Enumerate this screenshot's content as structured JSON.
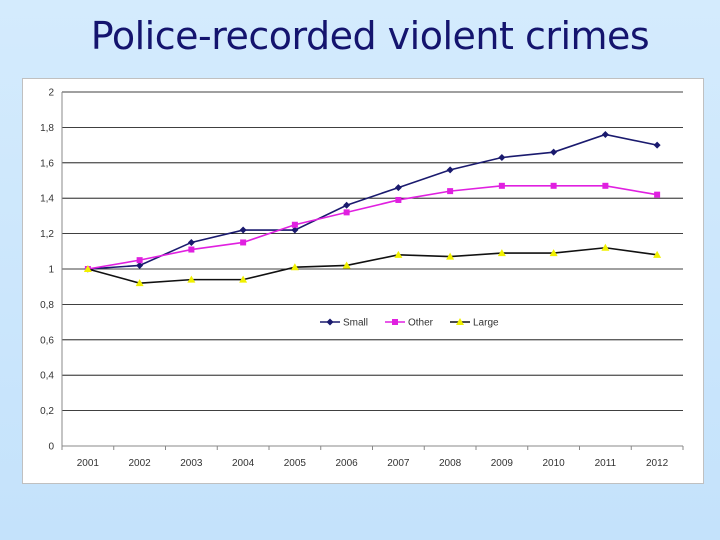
{
  "slide": {
    "title": "Police-recorded violent crimes"
  },
  "chart_data": {
    "type": "line",
    "title": "",
    "xlabel": "",
    "ylabel": "",
    "ylim": [
      0,
      2
    ],
    "grid": true,
    "legend_position": "center",
    "x": [
      "2001",
      "2002",
      "2003",
      "2004",
      "2005",
      "2006",
      "2007",
      "2008",
      "2009",
      "2010",
      "2011",
      "2012"
    ],
    "y_ticks": [
      "0",
      "0,2",
      "0,4",
      "0,6",
      "0,8",
      "1",
      "1,2",
      "1,4",
      "1,6",
      "1,8",
      "2"
    ],
    "series": [
      {
        "name": "Small",
        "color": "#1a1a6e",
        "marker": "diamond",
        "values": [
          1.0,
          1.02,
          1.15,
          1.22,
          1.22,
          1.36,
          1.46,
          1.56,
          1.63,
          1.66,
          1.76,
          1.7
        ]
      },
      {
        "name": "Other",
        "color": "#e020e0",
        "marker": "square",
        "values": [
          1.0,
          1.05,
          1.11,
          1.15,
          1.25,
          1.32,
          1.39,
          1.44,
          1.47,
          1.47,
          1.47,
          1.42
        ]
      },
      {
        "name": "Large",
        "color": "#f0f000",
        "line_color": "#111111",
        "marker": "triangle",
        "values": [
          1.0,
          0.92,
          0.94,
          0.94,
          1.01,
          1.02,
          1.08,
          1.07,
          1.09,
          1.09,
          1.12,
          1.08
        ]
      }
    ]
  }
}
